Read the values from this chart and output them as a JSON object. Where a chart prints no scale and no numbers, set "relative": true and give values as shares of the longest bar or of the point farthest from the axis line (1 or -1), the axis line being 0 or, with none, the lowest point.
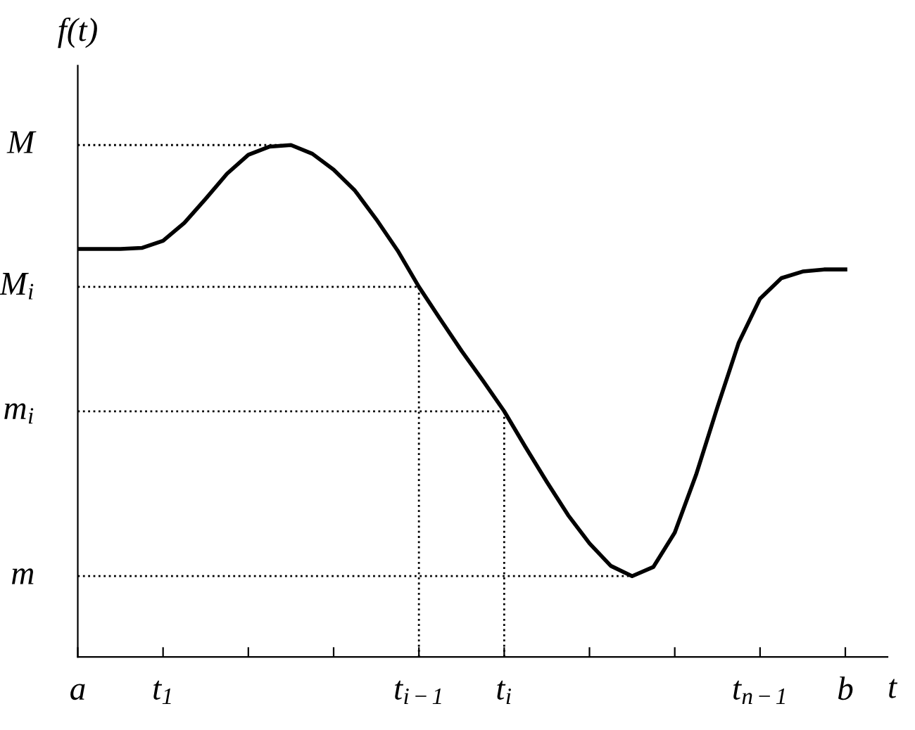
{
  "chart_data": {
    "type": "line",
    "relative": true,
    "xlabel": "t",
    "ylabel": "f(t)",
    "categories": [
      "a",
      null,
      null,
      null,
      "t$_{1}$",
      null,
      null,
      null,
      null,
      null,
      null,
      null,
      null,
      null,
      null,
      null,
      "t$_{i−1}$",
      null,
      null,
      null,
      "t$_{i}$",
      null,
      null,
      null,
      null,
      null,
      null,
      null,
      null,
      null,
      null,
      null,
      "t$_{n−1}$",
      null,
      null,
      null,
      "b"
    ],
    "grid": false,
    "legend": false,
    "marker": "none",
    "series": [
      {
        "color": "#000000",
        "line_style": "solid",
        "values": [
          0.797,
          0.797,
          0.797,
          0.799,
          0.813,
          0.848,
          0.895,
          0.944,
          0.981,
          0.997,
          1.0,
          0.983,
          0.952,
          0.911,
          0.855,
          0.794,
          0.723,
          0.66,
          0.598,
          0.54,
          0.48,
          0.41,
          0.342,
          0.277,
          0.222,
          0.178,
          0.158,
          0.176,
          0.243,
          0.356,
          0.488,
          0.614,
          0.7,
          0.74,
          0.753,
          0.757,
          0.757
        ]
      }
    ],
    "ref_lines": [
      {
        "axis": "y",
        "value": 1.0,
        "label": "M",
        "color": "#000000",
        "line_style": "dotted"
      },
      {
        "axis": "y",
        "value": 0.723,
        "label": "M$_{i}$",
        "color": "#000000",
        "line_style": "dotted"
      },
      {
        "axis": "y",
        "value": 0.48,
        "label": "m$_{i}$",
        "color": "#000000",
        "line_style": "dotted"
      },
      {
        "axis": "y",
        "value": 0.158,
        "label": "m",
        "color": "#000000",
        "line_style": "dotted"
      },
      {
        "axis": "x",
        "value": "t$_{i−1}$",
        "color": "#000000",
        "line_style": "dotted"
      },
      {
        "axis": "x",
        "value": "t$_{i}$",
        "color": "#000000",
        "line_style": "dotted"
      }
    ]
  }
}
